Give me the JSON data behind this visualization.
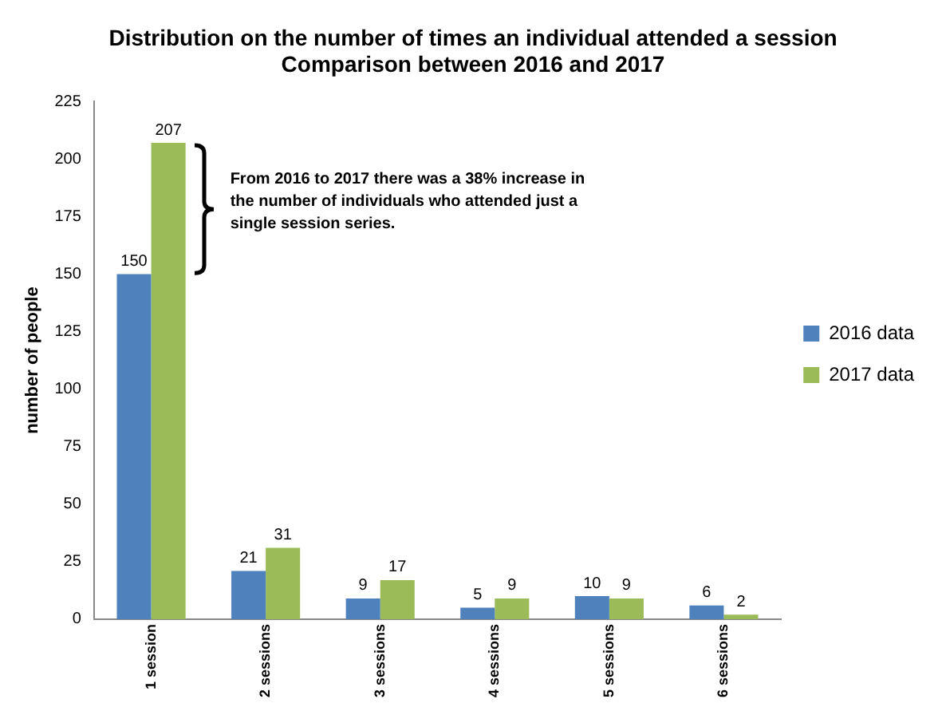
{
  "chart_data": {
    "type": "bar",
    "title": "Distribution on the number of times an individual attended a session\nComparison between 2016 and 2017",
    "ylabel": "number of people",
    "categories": [
      "1 session",
      "2 sessions",
      "3 sessions",
      "4 sessions",
      "5 sessions",
      "6 sessions"
    ],
    "series": [
      {
        "name": "2016 data",
        "color": "#4f81bd",
        "values": [
          150,
          21,
          9,
          5,
          10,
          6
        ]
      },
      {
        "name": "2017 data",
        "color": "#9bbb59",
        "values": [
          207,
          31,
          17,
          9,
          9,
          2
        ]
      }
    ],
    "ylim": [
      0,
      225
    ],
    "yticks": [
      0,
      25,
      50,
      75,
      100,
      125,
      150,
      175,
      200,
      225
    ],
    "grid": false,
    "legend": "right",
    "data_labels": true,
    "annotations": [
      "From 2016 to 2017 there was a 38% increase in the number of individuals who attended just a single session series."
    ]
  }
}
